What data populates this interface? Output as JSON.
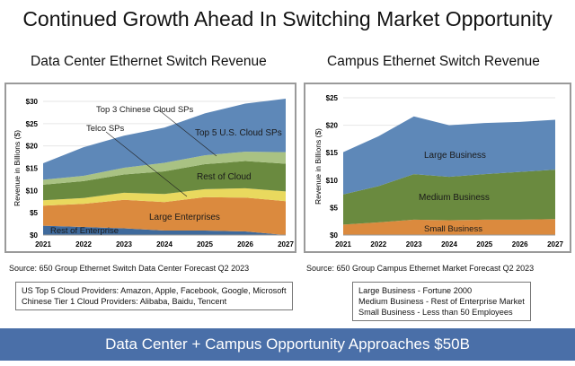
{
  "title": "Continued Growth Ahead In Switching Market Opportunity",
  "banner": "Data Center + Campus Opportunity Approaches $50B",
  "left": {
    "source": "Source: 650 Group Ethernet Switch Data Center Forecast Q2 2023",
    "notes": [
      "US Top 5 Cloud Providers: Amazon, Apple, Facebook, Google, Microsoft",
      "Chinese Tier 1 Cloud Providers: Alibaba, Baidu, Tencent"
    ]
  },
  "right": {
    "source": "Source: 650 Group Campus Ethernet Market Forecast Q2 2023",
    "notes": [
      "Large Business - Fortune 2000",
      "Medium Business - Rest of Enterprise Market",
      "Small Business - Less than 50 Employees"
    ]
  },
  "chart_data": [
    {
      "type": "area",
      "stacked": true,
      "title": "Data Center Ethernet Switch Revenue",
      "xlabel": "",
      "ylabel": "Revenue in Billions ($)",
      "categories": [
        "2021",
        "2022",
        "2023",
        "2024",
        "2025",
        "2026",
        "2027"
      ],
      "ylim": [
        0,
        30
      ],
      "yticks": [
        "$0",
        "$5",
        "$10",
        "$15",
        "$20",
        "$25",
        "$30"
      ],
      "grid": true,
      "series": [
        {
          "name": "Rest of Enterprise",
          "color": "#3f6a9c",
          "values": [
            2.1,
            1.8,
            1.5,
            1.0,
            1.0,
            0.8,
            0.0
          ]
        },
        {
          "name": "Large Enterprises",
          "color": "#db8a3e",
          "values": [
            4.5,
            5.2,
            6.4,
            6.4,
            7.5,
            7.6,
            7.6
          ]
        },
        {
          "name": "Telco SPs",
          "color": "#e9d95e",
          "values": [
            1.2,
            1.3,
            1.6,
            1.8,
            1.8,
            2.1,
            2.2
          ]
        },
        {
          "name": "Rest of Cloud",
          "color": "#6a8a3f",
          "values": [
            3.5,
            3.8,
            4.1,
            5.1,
            5.6,
            6.1,
            6.2
          ]
        },
        {
          "name": "Top 3 Chinese Cloud SPs",
          "color": "#a9c283",
          "values": [
            1.1,
            1.2,
            1.5,
            1.9,
            2.0,
            2.1,
            2.6
          ]
        },
        {
          "name": "Top 5 U.S. Cloud SPs",
          "color": "#5e88b8",
          "values": [
            3.7,
            6.4,
            7.2,
            7.9,
            9.4,
            10.8,
            12.0
          ]
        }
      ]
    },
    {
      "type": "area",
      "stacked": true,
      "title": "Campus Ethernet Switch Revenue",
      "xlabel": "",
      "ylabel": "Revenue in Billions ($)",
      "categories": [
        "2021",
        "2022",
        "2023",
        "2024",
        "2025",
        "2026",
        "2027"
      ],
      "ylim": [
        0,
        25
      ],
      "yticks": [
        "$0",
        "$5",
        "$10",
        "$15",
        "$20",
        "$25"
      ],
      "grid": true,
      "series": [
        {
          "name": "Small Business",
          "color": "#db8a3e",
          "values": [
            1.9,
            2.3,
            2.8,
            2.7,
            2.8,
            2.8,
            2.9
          ]
        },
        {
          "name": "Medium Business",
          "color": "#6a8a3f",
          "values": [
            5.5,
            6.6,
            8.3,
            7.9,
            8.3,
            8.7,
            9.0
          ]
        },
        {
          "name": "Large Business",
          "color": "#5e88b8",
          "values": [
            7.7,
            9.1,
            10.5,
            9.4,
            9.3,
            9.1,
            9.1
          ]
        }
      ]
    }
  ]
}
